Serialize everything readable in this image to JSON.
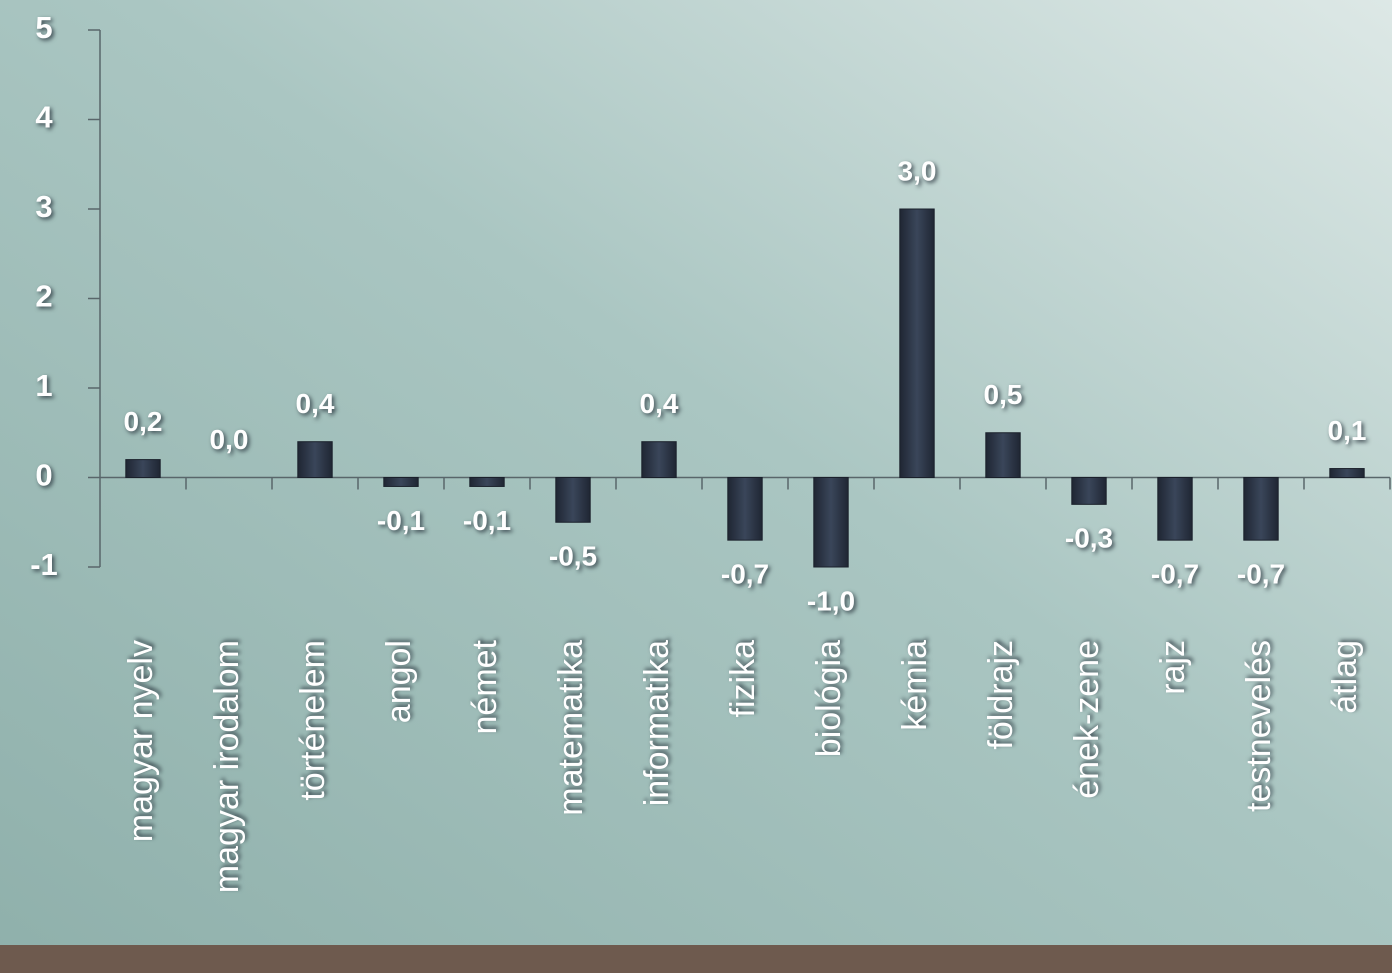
{
  "chart_data": {
    "type": "bar",
    "categories": [
      "magyar nyelv",
      "magyar irodalom",
      "történelem",
      "angol",
      "német",
      "matematika",
      "informatika",
      "fizika",
      "biológia",
      "kémia",
      "földrajz",
      "ének-zene",
      "rajz",
      "testnevelés",
      "átlag"
    ],
    "values": [
      0.2,
      0.0,
      0.4,
      -0.1,
      -0.1,
      -0.5,
      0.4,
      -0.7,
      -1.0,
      3.0,
      0.5,
      -0.3,
      -0.7,
      -0.7,
      0.1
    ],
    "value_labels": [
      "0,2",
      "0,0",
      "0,4",
      "-0,1",
      "-0,1",
      "-0,5",
      "0,4",
      "-0,7",
      "-1,0",
      "3,0",
      "0,5",
      "-0,3",
      "-0,7",
      "-0,7",
      "0,1"
    ],
    "color": "#2e3748",
    "ylim": [
      -1,
      5
    ],
    "yticks": [
      -1,
      0,
      1,
      2,
      3,
      4,
      5
    ],
    "grid": false
  }
}
